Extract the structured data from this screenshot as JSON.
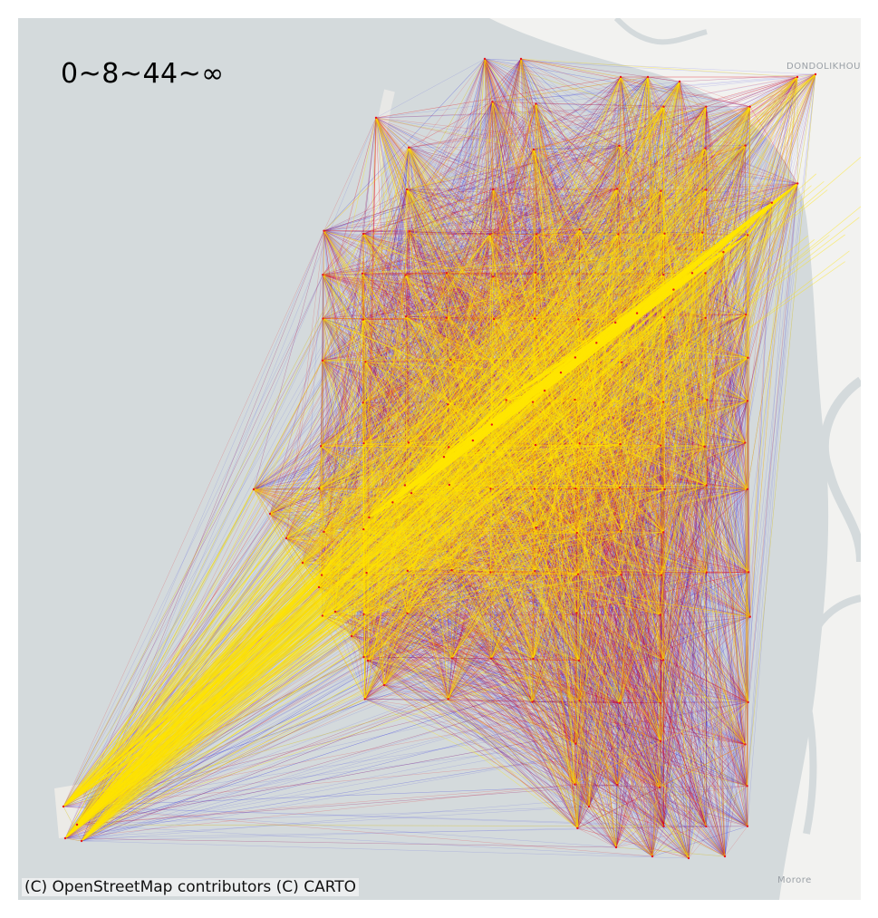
{
  "map": {
    "legend_title": "0~8~44~∞",
    "attribution": "(C) OpenStreetMap contributors (C) CARTO",
    "place_labels": {
      "dondolikhou": "DONDOLIKHOU",
      "morore": "Morore"
    },
    "basemap": "CARTO light",
    "colors": {
      "water": "#d4dadc",
      "land": "#f2f2f0",
      "river": "#d4dadc",
      "flow_low": "#1414e6",
      "flow_mid": "#e6141e",
      "flow_high": "#ffe600"
    },
    "flow_classes": [
      {
        "range": "0~8",
        "color_key": "flow_low"
      },
      {
        "range": "8~44",
        "color_key": "flow_mid"
      },
      {
        "range": "44~∞",
        "color_key": "flow_high"
      }
    ]
  }
}
